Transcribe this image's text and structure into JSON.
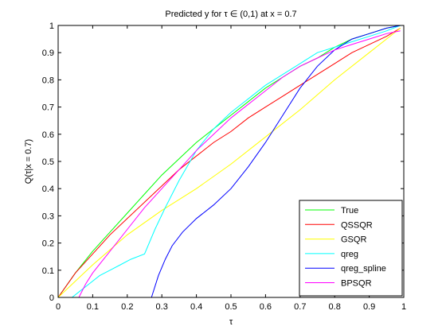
{
  "chart_data": {
    "type": "line",
    "title": "Predicted y for τ ∈ (0,1) at x = 0.7",
    "xlabel": "τ",
    "ylabel": "Q(τ|x = 0.7)",
    "xlim": [
      0,
      1
    ],
    "ylim": [
      0,
      1
    ],
    "xticks": [
      "0",
      "0.1",
      "0.2",
      "0.3",
      "0.4",
      "0.5",
      "0.6",
      "0.7",
      "0.8",
      "0.9",
      "1"
    ],
    "yticks": [
      "0",
      "0.1",
      "0.2",
      "0.3",
      "0.4",
      "0.5",
      "0.6",
      "0.7",
      "0.8",
      "0.9",
      "1"
    ],
    "grid": false,
    "legend_position": "bottom-right",
    "series": [
      {
        "name": "True",
        "color": "#00ff00",
        "x": [
          0,
          0.05,
          0.1,
          0.15,
          0.2,
          0.25,
          0.3,
          0.35,
          0.4,
          0.45,
          0.5,
          0.55,
          0.6,
          0.65,
          0.7,
          0.75,
          0.8,
          0.85,
          0.9,
          0.95,
          0.99
        ],
        "y": [
          0,
          0.09,
          0.17,
          0.24,
          0.31,
          0.38,
          0.45,
          0.51,
          0.57,
          0.62,
          0.67,
          0.72,
          0.77,
          0.81,
          0.85,
          0.88,
          0.92,
          0.95,
          0.97,
          0.99,
          1.0
        ]
      },
      {
        "name": "QSSQR",
        "color": "#ff0000",
        "x": [
          0,
          0.05,
          0.1,
          0.15,
          0.2,
          0.25,
          0.3,
          0.35,
          0.4,
          0.45,
          0.5,
          0.55,
          0.6,
          0.65,
          0.7,
          0.75,
          0.8,
          0.85,
          0.9,
          0.95,
          0.99
        ],
        "y": [
          0,
          0.09,
          0.16,
          0.23,
          0.29,
          0.35,
          0.41,
          0.47,
          0.52,
          0.57,
          0.61,
          0.66,
          0.7,
          0.74,
          0.78,
          0.82,
          0.86,
          0.9,
          0.93,
          0.96,
          0.99
        ]
      },
      {
        "name": "GSQR",
        "color": "#ffff00",
        "x": [
          0,
          0.1,
          0.2,
          0.3,
          0.4,
          0.5,
          0.6,
          0.7,
          0.8,
          0.9,
          0.99
        ],
        "y": [
          0,
          0.12,
          0.23,
          0.32,
          0.4,
          0.49,
          0.59,
          0.69,
          0.8,
          0.9,
          0.99
        ]
      },
      {
        "name": "qreg",
        "color": "#00ffff",
        "x": [
          0.04,
          0.06,
          0.09,
          0.12,
          0.15,
          0.18,
          0.21,
          0.25,
          0.28,
          0.31,
          0.35,
          0.4,
          0.45,
          0.5,
          0.55,
          0.6,
          0.65,
          0.7,
          0.75,
          0.8,
          0.85,
          0.9,
          0.95,
          0.99
        ],
        "y": [
          0,
          0.02,
          0.05,
          0.08,
          0.1,
          0.12,
          0.14,
          0.16,
          0.25,
          0.33,
          0.43,
          0.54,
          0.62,
          0.68,
          0.73,
          0.78,
          0.82,
          0.86,
          0.9,
          0.92,
          0.94,
          0.96,
          0.98,
          1.0
        ]
      },
      {
        "name": "qreg_spline",
        "color": "#0000ff",
        "x": [
          0.27,
          0.29,
          0.31,
          0.33,
          0.36,
          0.4,
          0.45,
          0.5,
          0.55,
          0.6,
          0.65,
          0.7,
          0.75,
          0.8,
          0.85,
          0.9,
          0.95,
          0.99
        ],
        "y": [
          0,
          0.08,
          0.14,
          0.19,
          0.24,
          0.29,
          0.34,
          0.4,
          0.48,
          0.57,
          0.67,
          0.77,
          0.85,
          0.91,
          0.95,
          0.97,
          0.99,
          1.0
        ]
      },
      {
        "name": "BPSQR",
        "color": "#ff00ff",
        "x": [
          0.06,
          0.08,
          0.1,
          0.15,
          0.2,
          0.25,
          0.3,
          0.35,
          0.4,
          0.45,
          0.5,
          0.55,
          0.6,
          0.65,
          0.7,
          0.75,
          0.8,
          0.85,
          0.9,
          0.95,
          0.99
        ],
        "y": [
          0,
          0.05,
          0.09,
          0.17,
          0.25,
          0.33,
          0.4,
          0.47,
          0.54,
          0.6,
          0.66,
          0.71,
          0.76,
          0.81,
          0.85,
          0.88,
          0.91,
          0.93,
          0.95,
          0.97,
          0.98
        ]
      }
    ]
  }
}
